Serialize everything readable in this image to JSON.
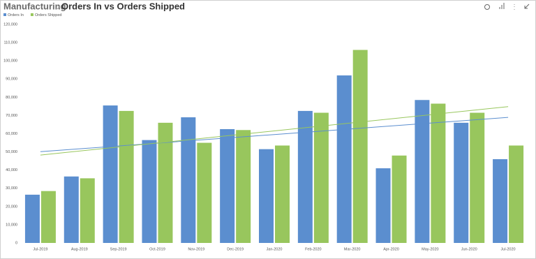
{
  "chart_data": {
    "type": "bar",
    "breadcrumb": "Manufacturing",
    "title": "Orders In vs Orders Shipped",
    "categories": [
      "Jul-2019",
      "Aug-2019",
      "Sep-2019",
      "Oct-2019",
      "Nov-2019",
      "Dec-2019",
      "Jan-2020",
      "Feb-2020",
      "Mar-2020",
      "Apr-2020",
      "May-2020",
      "Jun-2020",
      "Jul-2020"
    ],
    "series": [
      {
        "name": "Orders In",
        "color": "#5b8ecf",
        "values": [
          26500,
          36500,
          75500,
          56500,
          69000,
          62500,
          51500,
          72500,
          92000,
          41000,
          78500,
          66000,
          46000
        ]
      },
      {
        "name": "Orders Shipped",
        "color": "#98c65d",
        "values": [
          28500,
          35500,
          72500,
          66000,
          55000,
          62000,
          53500,
          71500,
          106000,
          48000,
          76500,
          71500,
          53500
        ]
      }
    ],
    "trendline": true,
    "ylim": [
      0,
      120000
    ],
    "yticks": [
      0,
      {
        "value": 10000,
        "label": "10,000"
      },
      {
        "value": 20000,
        "label": "20,000"
      },
      {
        "value": 30000,
        "label": "30,000"
      },
      {
        "value": 40000,
        "label": "40,000"
      },
      {
        "value": 50000,
        "label": "50,000"
      },
      {
        "value": 60000,
        "label": "60,000"
      },
      {
        "value": 70000,
        "label": "70,000"
      },
      {
        "value": 80000,
        "label": "80,000"
      },
      {
        "value": 90000,
        "label": "90,000"
      },
      {
        "value": 100000,
        "label": "100,000"
      },
      {
        "value": 110000,
        "label": "110,000"
      },
      {
        "value": 120000,
        "label": "120,000"
      }
    ],
    "grid": false,
    "legend": "top-left"
  }
}
